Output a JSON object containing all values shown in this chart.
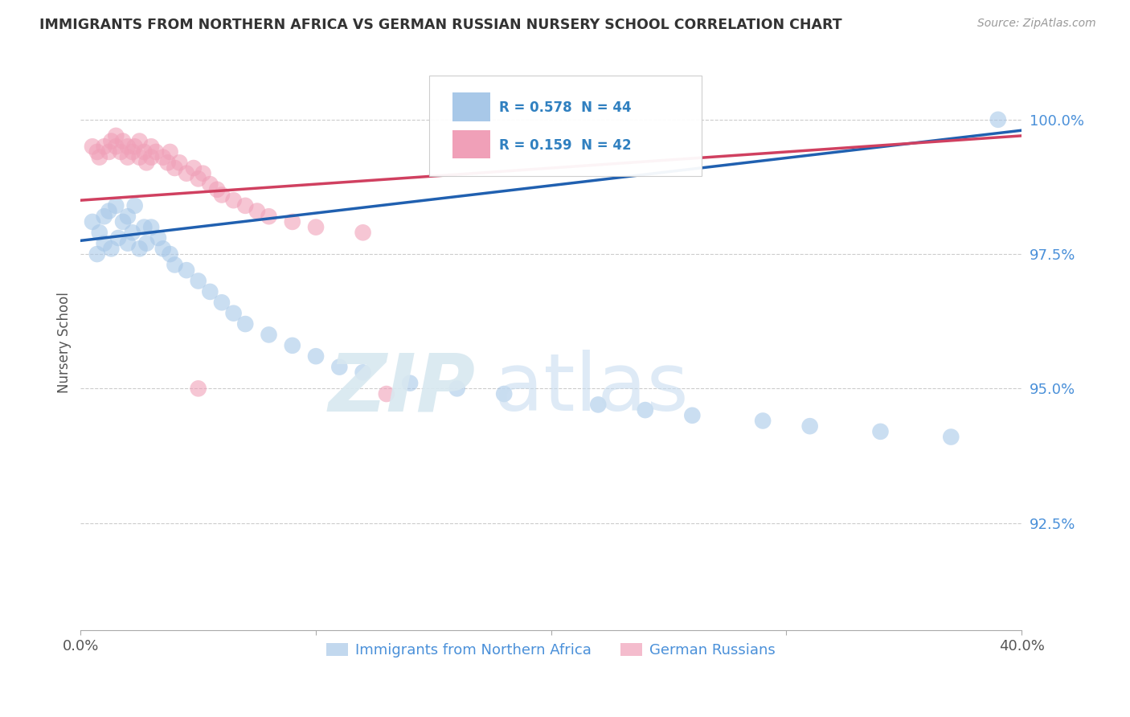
{
  "title": "IMMIGRANTS FROM NORTHERN AFRICA VS GERMAN RUSSIAN NURSERY SCHOOL CORRELATION CHART",
  "source": "Source: ZipAtlas.com",
  "ylabel": "Nursery School",
  "legend1_label": "Immigrants from Northern Africa",
  "legend2_label": "German Russians",
  "R_blue": 0.578,
  "N_blue": 44,
  "R_pink": 0.159,
  "N_pink": 42,
  "blue_color": "#A8C8E8",
  "pink_color": "#F0A0B8",
  "blue_line_color": "#2060B0",
  "pink_line_color": "#D04060",
  "xlim": [
    0.0,
    0.4
  ],
  "ylim": [
    0.905,
    1.012
  ],
  "yticks": [
    0.925,
    0.95,
    0.975,
    1.0
  ],
  "ytick_labels": [
    "92.5%",
    "95.0%",
    "97.5%",
    "100.0%"
  ],
  "blue_x": [
    0.005,
    0.007,
    0.008,
    0.01,
    0.01,
    0.012,
    0.013,
    0.015,
    0.016,
    0.018,
    0.02,
    0.02,
    0.022,
    0.023,
    0.025,
    0.027,
    0.028,
    0.03,
    0.033,
    0.035,
    0.038,
    0.04,
    0.045,
    0.05,
    0.055,
    0.06,
    0.065,
    0.07,
    0.08,
    0.09,
    0.1,
    0.11,
    0.12,
    0.14,
    0.16,
    0.18,
    0.22,
    0.24,
    0.26,
    0.29,
    0.31,
    0.34,
    0.37,
    0.39
  ],
  "blue_y": [
    0.981,
    0.975,
    0.979,
    0.982,
    0.977,
    0.983,
    0.976,
    0.984,
    0.978,
    0.981,
    0.977,
    0.982,
    0.979,
    0.984,
    0.976,
    0.98,
    0.977,
    0.98,
    0.978,
    0.976,
    0.975,
    0.973,
    0.972,
    0.97,
    0.968,
    0.966,
    0.964,
    0.962,
    0.96,
    0.958,
    0.956,
    0.954,
    0.953,
    0.951,
    0.95,
    0.949,
    0.947,
    0.946,
    0.945,
    0.944,
    0.943,
    0.942,
    0.941,
    1.0
  ],
  "pink_x": [
    0.005,
    0.007,
    0.008,
    0.01,
    0.012,
    0.013,
    0.015,
    0.015,
    0.017,
    0.018,
    0.02,
    0.02,
    0.022,
    0.023,
    0.025,
    0.025,
    0.027,
    0.028,
    0.03,
    0.03,
    0.032,
    0.035,
    0.037,
    0.038,
    0.04,
    0.042,
    0.045,
    0.048,
    0.05,
    0.052,
    0.055,
    0.058,
    0.06,
    0.065,
    0.07,
    0.075,
    0.08,
    0.09,
    0.1,
    0.12,
    0.05,
    0.13
  ],
  "pink_y": [
    0.995,
    0.994,
    0.993,
    0.995,
    0.994,
    0.996,
    0.995,
    0.997,
    0.994,
    0.996,
    0.995,
    0.993,
    0.994,
    0.995,
    0.993,
    0.996,
    0.994,
    0.992,
    0.993,
    0.995,
    0.994,
    0.993,
    0.992,
    0.994,
    0.991,
    0.992,
    0.99,
    0.991,
    0.989,
    0.99,
    0.988,
    0.987,
    0.986,
    0.985,
    0.984,
    0.983,
    0.982,
    0.981,
    0.98,
    0.979,
    0.95,
    0.949
  ],
  "watermark_zip": "ZIP",
  "watermark_atlas": "atlas"
}
